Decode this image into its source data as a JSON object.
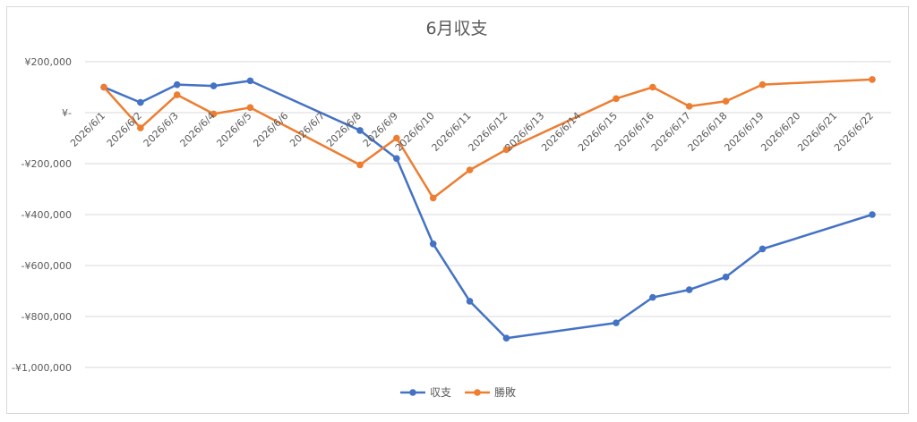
{
  "chart_data": {
    "type": "line",
    "title": "6月収支",
    "xlabel": "",
    "ylabel": "",
    "ylim": [
      -1000000,
      200000
    ],
    "y_ticks": [
      200000,
      0,
      -200000,
      -400000,
      -600000,
      -800000,
      -1000000
    ],
    "y_tick_labels": [
      "¥200,000",
      "¥-",
      "-¥200,000",
      "-¥400,000",
      "-¥600,000",
      "-¥800,000",
      "-¥1,000,000"
    ],
    "categories": [
      "2026/6/1",
      "2026/6/2",
      "2026/6/3",
      "2026/6/4",
      "2026/6/5",
      "2026/6/6",
      "2026/6/7",
      "2026/6/8",
      "2026/6/9",
      "2026/6/10",
      "2026/6/11",
      "2026/6/12",
      "2026/6/13",
      "2026/6/14",
      "2026/6/15",
      "2026/6/16",
      "2026/6/17",
      "2026/6/18",
      "2026/6/19",
      "2026/6/20",
      "2026/6/21",
      "2026/6/22"
    ],
    "grid": true,
    "legend_position": "bottom",
    "series": [
      {
        "name": "収支",
        "color": "#4472c4",
        "values": [
          100000,
          40000,
          110000,
          105000,
          125000,
          null,
          null,
          -70000,
          -180000,
          -515000,
          -740000,
          -885000,
          null,
          null,
          -825000,
          -725000,
          -695000,
          -645000,
          -535000,
          null,
          null,
          -400000
        ]
      },
      {
        "name": "勝敗",
        "color": "#ed7d31",
        "values": [
          100000,
          -60000,
          70000,
          -5000,
          20000,
          null,
          null,
          -205000,
          -100000,
          -335000,
          -225000,
          -145000,
          null,
          null,
          55000,
          100000,
          25000,
          45000,
          110000,
          null,
          null,
          130000
        ]
      }
    ]
  }
}
